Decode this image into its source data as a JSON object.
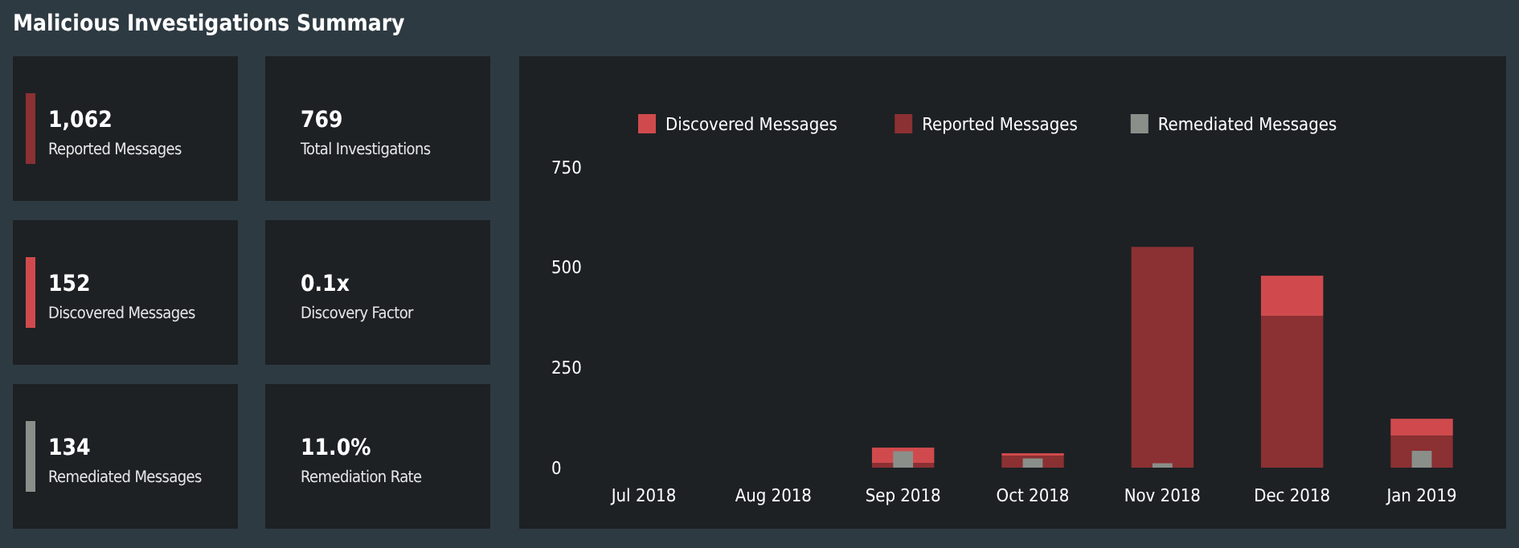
{
  "chart_data": [
    {
      "type": "other",
      "title": "Malicious Investigations Summary",
      "annotations": [
        "1,062",
        "Reported Messages",
        "769",
        "Total Investigations",
        "152",
        "Discovered Messages",
        "0.1x",
        "Discovery Factor",
        "134",
        "Remediated Messages",
        "11.0%",
        "Remediation Rate"
      ]
    },
    {
      "type": "bar",
      "categories": [
        "Jul 2018",
        "Aug 2018",
        "Sep 2018",
        "Oct 2018",
        "Nov 2018",
        "Dec 2018",
        "Jan 2019"
      ],
      "series": [
        {
          "name": "Discovered Messages",
          "color": "#d04a4d",
          "values": [
            0,
            0,
            38,
            6,
            0,
            100,
            42
          ],
          "base": [
            null,
            null,
            12,
            30,
            null,
            379,
            80
          ]
        },
        {
          "name": "Reported Messages",
          "color": "#8b3033",
          "values": [
            0,
            0,
            12,
            30,
            551,
            379,
            80
          ]
        },
        {
          "name": "Remediated Messages",
          "color": "#8a8f8a",
          "values": [
            0,
            0,
            41,
            23,
            11,
            0,
            42
          ]
        }
      ],
      "ylim": [
        0,
        750
      ],
      "yticks": [
        0,
        250,
        500,
        750
      ],
      "grid": false,
      "legend": "top"
    }
  ]
}
